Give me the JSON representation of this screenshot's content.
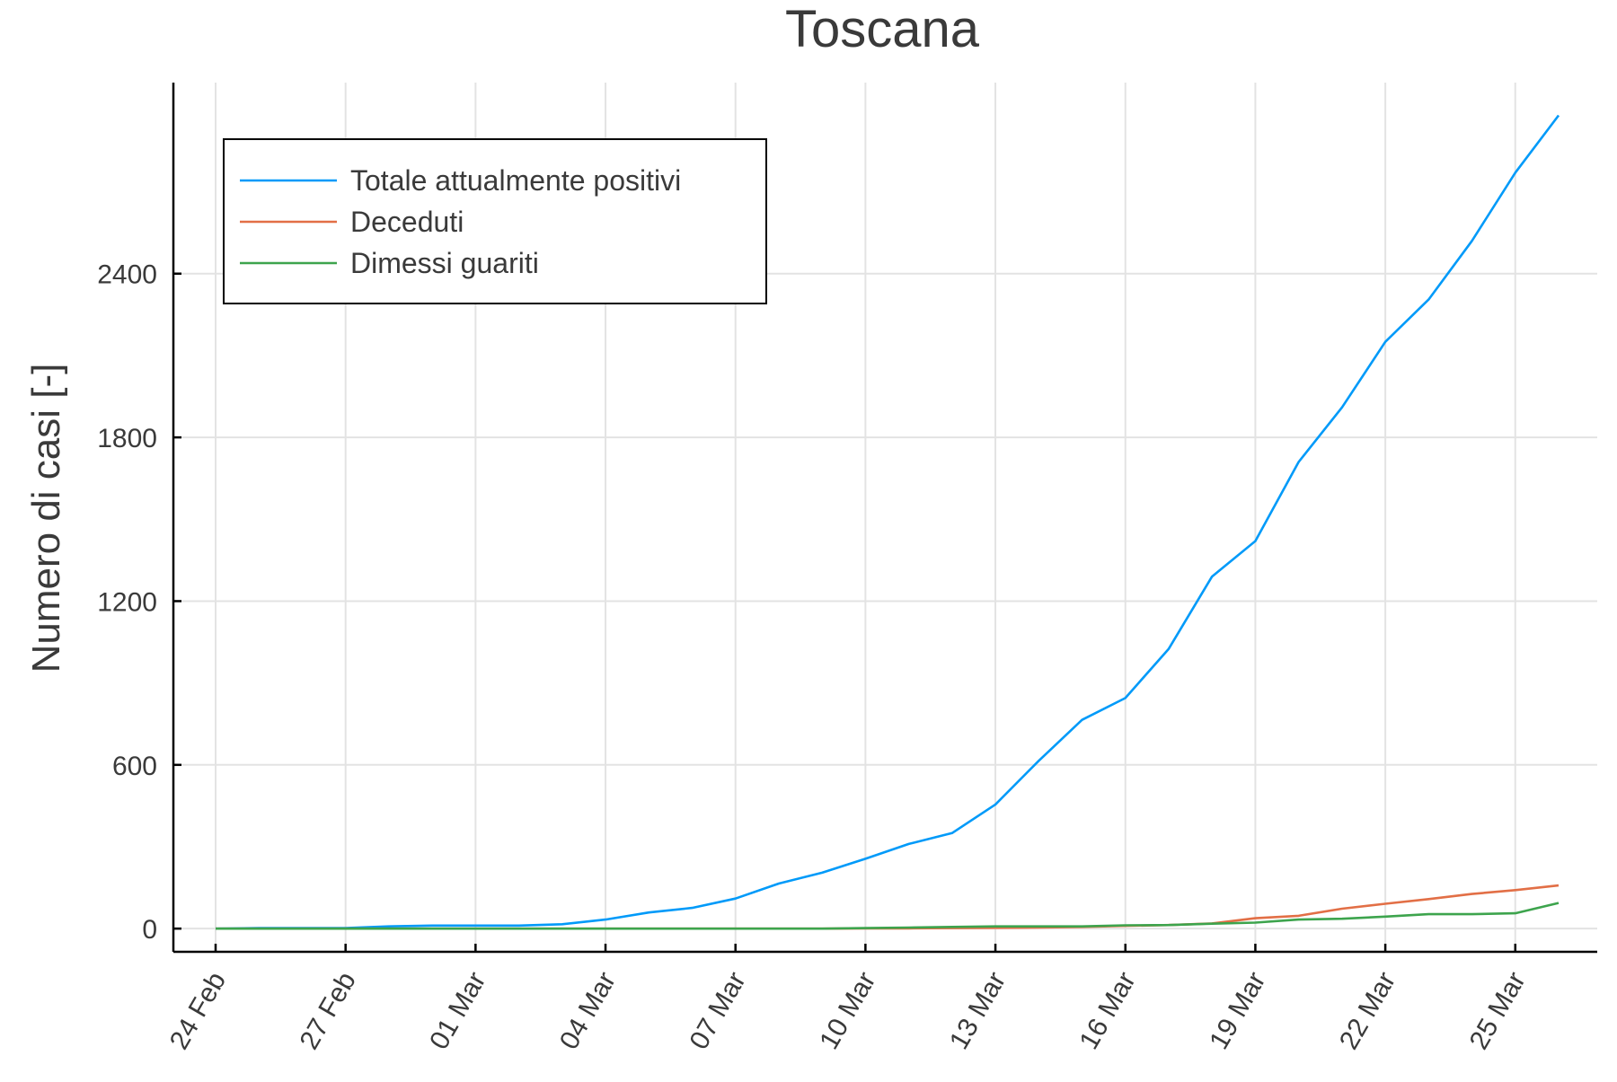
{
  "chart_data": {
    "type": "line",
    "title": "Toscana",
    "xlabel": "",
    "ylabel": "Numero di casi [-]",
    "x": [
      "24 Feb",
      "25 Feb",
      "26 Feb",
      "27 Feb",
      "28 Feb",
      "29 Feb",
      "01 Mar",
      "02 Mar",
      "03 Mar",
      "04 Mar",
      "05 Mar",
      "06 Mar",
      "07 Mar",
      "08 Mar",
      "09 Mar",
      "10 Mar",
      "11 Mar",
      "12 Mar",
      "13 Mar",
      "14 Mar",
      "15 Mar",
      "16 Mar",
      "17 Mar",
      "18 Mar",
      "19 Mar",
      "20 Mar",
      "21 Mar",
      "22 Mar",
      "23 Mar",
      "24 Mar",
      "25 Mar",
      "26 Mar"
    ],
    "x_ticks": [
      "24 Feb",
      "27 Feb",
      "01 Mar",
      "04 Mar",
      "07 Mar",
      "10 Mar",
      "13 Mar",
      "16 Mar",
      "19 Mar",
      "22 Mar",
      "25 Mar"
    ],
    "y_ticks": [
      0,
      600,
      1200,
      1800,
      2400
    ],
    "ylim": [
      -85,
      3100
    ],
    "grid": true,
    "legend_position": "top-left",
    "series": [
      {
        "name": "Totale attualmente positivi",
        "color": "#009af9",
        "values": [
          0,
          2,
          2,
          2,
          8,
          11,
          11,
          11,
          16,
          33,
          59,
          76,
          110,
          165,
          205,
          256,
          310,
          350,
          455,
          615,
          765,
          845,
          1025,
          1290,
          1420,
          1710,
          1910,
          2150,
          2305,
          2520,
          2770,
          2980
        ]
      },
      {
        "name": "Deceduti",
        "color": "#e26f46",
        "values": [
          0,
          0,
          0,
          0,
          0,
          0,
          0,
          0,
          0,
          0,
          0,
          0,
          0,
          0,
          0,
          1,
          1,
          2,
          3,
          4,
          6,
          10,
          13,
          19,
          38,
          47,
          73,
          91,
          108,
          127,
          141,
          158
        ]
      },
      {
        "name": "Dimessi guariti",
        "color": "#3da44d",
        "values": [
          0,
          0,
          0,
          0,
          0,
          0,
          0,
          0,
          0,
          0,
          0,
          0,
          0,
          0,
          0,
          2,
          4,
          6,
          8,
          8,
          8,
          12,
          13,
          18,
          22,
          33,
          36,
          44,
          53,
          53,
          56,
          94
        ]
      }
    ]
  }
}
